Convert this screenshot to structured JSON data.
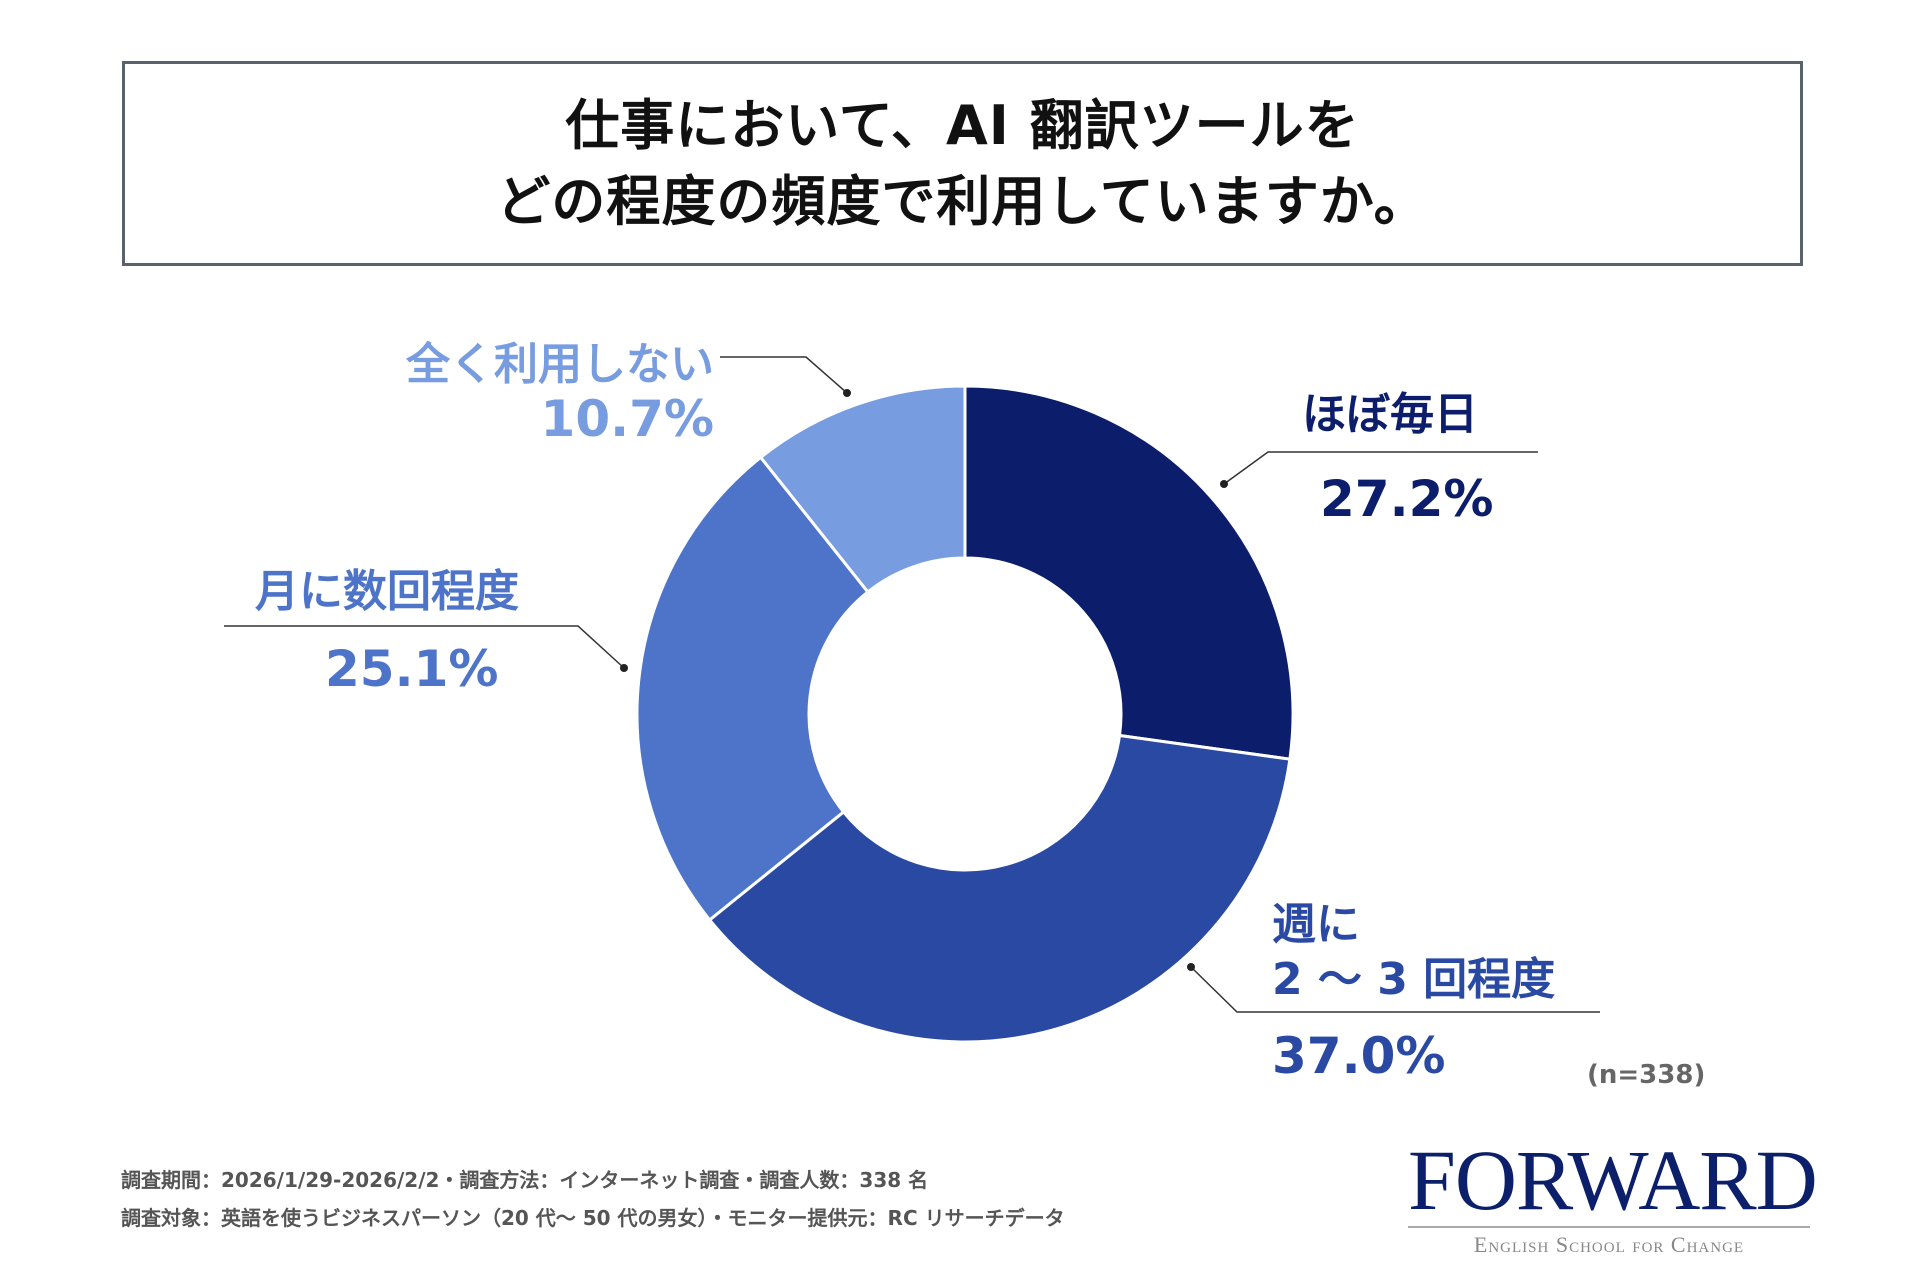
{
  "title": {
    "line1": "仕事において、AI 翻訳ツールを",
    "line2": "どの程度の頻度で利用していますか。"
  },
  "chart_data": {
    "type": "pie",
    "variant": "donut",
    "start": "top",
    "direction": "clockwise",
    "slices": [
      {
        "label": "ほぼ毎日",
        "value": 27.2,
        "display": "27.2%",
        "color": "#0b1d6b"
      },
      {
        "label_line1": "週に",
        "label_line2": "2 〜 3 回程度",
        "value": 37.0,
        "display": "37.0%",
        "color": "#2a49a3"
      },
      {
        "label": "月に数回程度",
        "value": 25.1,
        "display": "25.1%",
        "color": "#4e74c9"
      },
      {
        "label": "全く利用しない",
        "value": 10.7,
        "display": "10.7%",
        "color": "#789ce0"
      }
    ]
  },
  "sample_size": "(n=338)",
  "footer": {
    "line1": "調査期間：2026/1/29-2026/2/2・調査方法：インターネット調査・調査人数：338 名",
    "line2": "調査対象：英語を使うビジネスパーソン（20 代〜 50 代の男女）・モニター提供元：RC リサーチデータ"
  },
  "logo": {
    "name": "FORWARD",
    "tagline": "English School for Change",
    "color": "#0c1f6b"
  }
}
